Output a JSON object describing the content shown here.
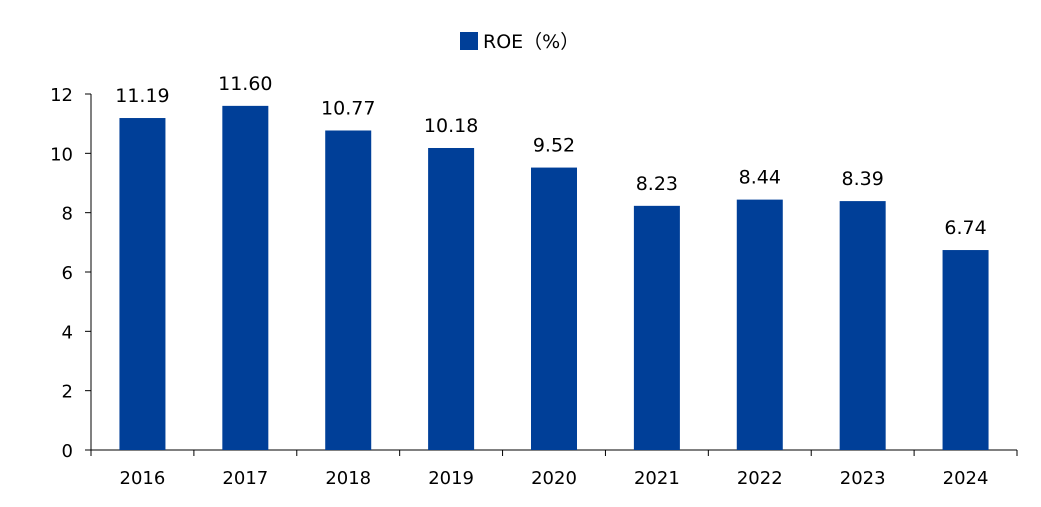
{
  "chart_data": {
    "type": "bar",
    "title": "",
    "xlabel": "",
    "ylabel": "",
    "categories": [
      "2016",
      "2017",
      "2018",
      "2019",
      "2020",
      "2021",
      "2022",
      "2023",
      "2024"
    ],
    "series": [
      {
        "name": "ROE（%）",
        "values": [
          11.19,
          11.6,
          10.77,
          10.18,
          9.52,
          8.23,
          8.44,
          8.39,
          6.74
        ],
        "labels": [
          "11.19",
          "11.60",
          "10.77",
          "10.18",
          "9.52",
          "8.23",
          "8.44",
          "8.39",
          "6.74"
        ],
        "color": "#003F98"
      }
    ],
    "ylim": [
      0,
      12
    ],
    "yticks": [
      "0",
      "2",
      "4",
      "6",
      "8",
      "10",
      "12"
    ],
    "grid": false,
    "legend": "top-center"
  }
}
